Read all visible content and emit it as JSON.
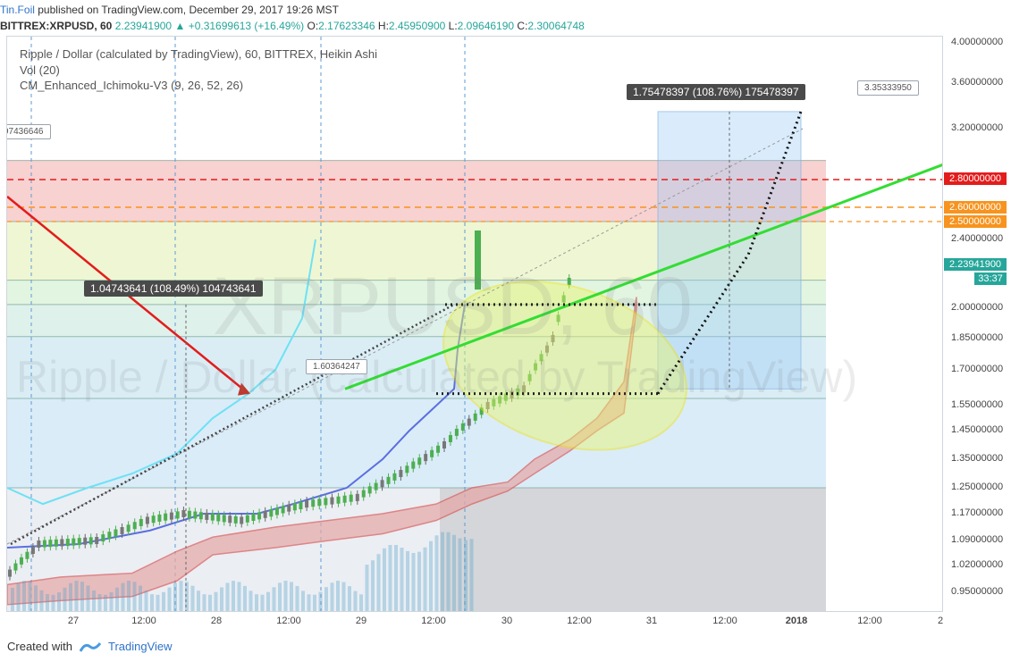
{
  "header": {
    "author": "Tin.Foil",
    "published_text": "published on TradingView.com, December 29, 2017 19:26 MST",
    "symbol": "BITTREX:XRPUSD, 60",
    "last": "2.23941900",
    "change": "+0.31699613 (+16.49%)",
    "o_label": "O:",
    "o_value": "2.17623346",
    "h_label": "H:",
    "h_value": "2.45950900",
    "l_label": "L:",
    "l_value": "2.09646190",
    "c_label": "C:",
    "c_value": "2.30064748"
  },
  "legend": {
    "title": "Ripple / Dollar (calculated by TradingView), 60, BITTREX, Heikin Ashi",
    "vol": "Vol (20)",
    "indicator": "CM_Enhanced_Ichimoku-V3 (9, 26, 52, 26)"
  },
  "watermark": {
    "symbol": "XRPUSD, 60",
    "name": "Ripple / Dollar (calculated by TradingView)"
  },
  "price_axis": {
    "ticks": [
      "4.00000000",
      "3.60000000",
      "3.20000000",
      "2.40000000",
      "2.00000000",
      "1.85000000",
      "1.70000000",
      "1.55000000",
      "1.45000000",
      "1.35000000",
      "1.25000000",
      "1.17000000",
      "1.09000000",
      "1.02000000",
      "0.95000000"
    ],
    "badges": [
      {
        "label": "2.80000000",
        "color": "#e31c1c",
        "price": 2.8
      },
      {
        "label": "2.60000000",
        "color": "#f7931e",
        "price": 2.6
      },
      {
        "label": "2.50000000",
        "color": "#f7931e",
        "price": 2.5
      },
      {
        "label": "2.23941900",
        "color": "#26a69a",
        "price": 2.2394
      }
    ],
    "countdown": "33:37"
  },
  "time_axis": {
    "labels": [
      "27",
      "12:00",
      "28",
      "12:00",
      "29",
      "12:00",
      "30",
      "12:00",
      "31",
      "12:00",
      "2018",
      "12:00",
      "2"
    ]
  },
  "annotations": {
    "measure1": "1.04743641 (108.49%) 104743641",
    "measure2": "1.75478397 (108.76%) 175478397",
    "price_note1": "1.60364247",
    "price_note2": "3.35333950",
    "left_price_tag": "97436646"
  },
  "footer": {
    "created_with": "Created with",
    "brand": "TradingView"
  },
  "colors": {
    "red_line": "#e31c1c",
    "orange_line": "#f7931e",
    "green_trend": "#33dd33",
    "bull": "#4caf50",
    "kijun": "#5b6fe0",
    "tenkan": "#6ee1f5",
    "cloud_fill": "#e6a7a7",
    "ellipse_fill": "#e8f56a"
  },
  "chart_data": {
    "type": "candlestick",
    "style": "Heikin Ashi",
    "symbol": "BITTREX:XRPUSD",
    "interval": "60",
    "y_scale": "log",
    "ylim": [
      0.9,
      4.1
    ],
    "x_ticks": [
      "27",
      "12:00",
      "28",
      "12:00",
      "29",
      "12:00",
      "30",
      "12:00",
      "31",
      "12:00",
      "2018",
      "12:00",
      "2"
    ],
    "horizontal_levels": [
      2.8,
      2.6,
      2.5
    ],
    "price_series": [
      {
        "t": 0,
        "p": 1.0
      },
      {
        "t": 0.4,
        "p": 1.08
      },
      {
        "t": 1.2,
        "p": 1.09
      },
      {
        "t": 1.9,
        "p": 1.15
      },
      {
        "t": 2.4,
        "p": 1.17
      },
      {
        "t": 3.2,
        "p": 1.15
      },
      {
        "t": 4.1,
        "p": 1.2
      },
      {
        "t": 4.8,
        "p": 1.22
      },
      {
        "t": 5.4,
        "p": 1.3
      },
      {
        "t": 6.0,
        "p": 1.4
      },
      {
        "t": 6.6,
        "p": 1.55
      },
      {
        "t": 7.1,
        "p": 1.62
      },
      {
        "t": 7.5,
        "p": 1.85
      },
      {
        "t": 7.8,
        "p": 2.24
      }
    ],
    "projection": [
      {
        "t": 7.9,
        "p": 2.24
      },
      {
        "t": 8.4,
        "p": 2.6
      },
      {
        "t": 9.6,
        "p": 1.62
      },
      {
        "t": 10.2,
        "p": 2.3
      },
      {
        "t": 11.0,
        "p": 3.35
      }
    ],
    "last_price": 2.239419
  }
}
